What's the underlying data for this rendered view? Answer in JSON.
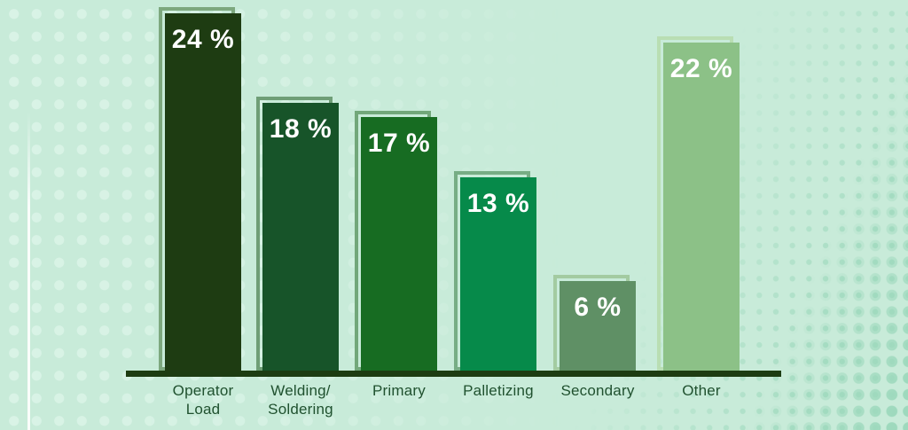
{
  "chart_data": {
    "type": "bar",
    "title": "",
    "xlabel": "",
    "ylabel": "",
    "unit": "%",
    "ylim": [
      0,
      25
    ],
    "grid": false,
    "legend": "none",
    "categories": [
      "Operator Load",
      "Welding/Soldering",
      "Primary",
      "Palletizing",
      "Secondary",
      "Other"
    ],
    "values": [
      24,
      18,
      17,
      13,
      6,
      22
    ],
    "bars": [
      {
        "category": "Operator Load",
        "category_lines": [
          "Operator",
          "Load"
        ],
        "value": 24,
        "value_label": "24 %",
        "fill": "#1e3c12",
        "outline": "#7da87e"
      },
      {
        "category": "Welding/Soldering",
        "category_lines": [
          "Welding/",
          "Soldering"
        ],
        "value": 18,
        "value_label": "18 %",
        "fill": "#175429",
        "outline": "#6f9e76"
      },
      {
        "category": "Primary",
        "category_lines": [
          "Primary"
        ],
        "value": 17,
        "value_label": "17 %",
        "fill": "#176c22",
        "outline": "#72a77a"
      },
      {
        "category": "Palletizing",
        "category_lines": [
          "Palletizing"
        ],
        "value": 13,
        "value_label": "13 %",
        "fill": "#068a4a",
        "outline": "#77ad85"
      },
      {
        "category": "Secondary",
        "category_lines": [
          "Secondary"
        ],
        "value": 6,
        "value_label": "6 %",
        "fill": "#5f9065",
        "outline": "#a3cba1"
      },
      {
        "category": "Other",
        "category_lines": [
          "Other"
        ],
        "value": 22,
        "value_label": "22 %",
        "fill": "#8cc187",
        "outline": "#b9deb3"
      }
    ]
  },
  "style": {
    "background": "#c8ebd9",
    "dot_left": "#d9f3e6",
    "dot_right": "#9ed9bd",
    "axis_color": "#1d3c12",
    "category_label_color": "#20512f",
    "value_text_color": "#ffffff"
  }
}
